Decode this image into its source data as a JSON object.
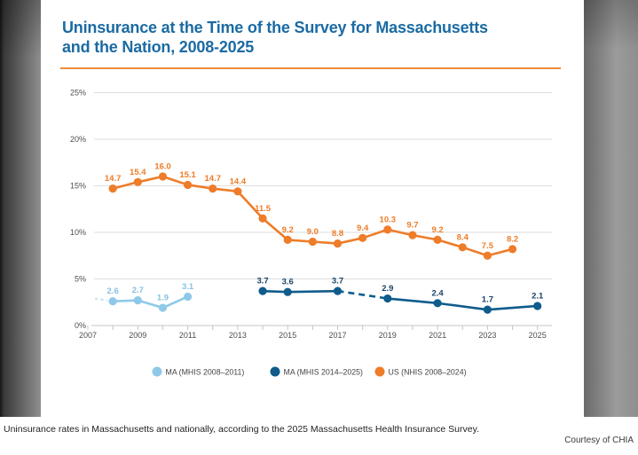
{
  "slide": {
    "title_line1": "Uninsurance at the Time of the Survey for Massachusetts",
    "title_line2": "and the Nation, 2008-2025",
    "accent_color": "#ee8a3c",
    "title_color": "#1b6ba3"
  },
  "caption": "Uninsurance rates in Massachusetts and nationally, according to the 2025 Massachusetts Health Insurance Survey.",
  "credit": "Courtesy of CHIA",
  "chart_data": {
    "type": "line",
    "title": "Uninsurance at the Time of the Survey for Massachusetts and the Nation, 2008-2025",
    "xlabel": "",
    "ylabel": "",
    "x_range": [
      2007,
      2025
    ],
    "ylim": [
      0,
      25
    ],
    "grid": true,
    "legend_position": "bottom",
    "ytick_values": [
      0,
      5,
      10,
      15,
      20,
      25
    ],
    "ytick_labels": [
      "0%",
      "5%",
      "10%",
      "15%",
      "20%",
      "25%"
    ],
    "xtick_labels": [
      "2007",
      "2009",
      "2011",
      "2013",
      "2015",
      "2017",
      "2019",
      "2021",
      "2023",
      "2025"
    ],
    "series": [
      {
        "id": "ma-mhis-2008-2011",
        "name": "MA (MHIS 2008–2011)",
        "color": "#8fc9e9",
        "label_color": "#85c2e4",
        "lead_in_dashed": true,
        "points": [
          {
            "year": 2008,
            "value": 2.6
          },
          {
            "year": 2009,
            "value": 2.7
          },
          {
            "year": 2010,
            "value": 1.9
          },
          {
            "year": 2011,
            "value": 3.1
          }
        ]
      },
      {
        "id": "ma-mhis-2014-2025",
        "name": "MA (MHIS 2014–2025)",
        "color": "#0f5c8c",
        "label_color": "#1a4568",
        "dashed_gaps": [
          [
            2017,
            2019
          ]
        ],
        "points": [
          {
            "year": 2014,
            "value": 3.7
          },
          {
            "year": 2015,
            "value": 3.6
          },
          {
            "year": 2017,
            "value": 3.7
          },
          {
            "year": 2019,
            "value": 2.9
          },
          {
            "year": 2021,
            "value": 2.4
          },
          {
            "year": 2023,
            "value": 1.7
          },
          {
            "year": 2025,
            "value": 2.1
          }
        ]
      },
      {
        "id": "us-nhis-2008-2024",
        "name": "US (NHIS 2008–2024)",
        "color": "#ee7c28",
        "label_color": "#ee7c28",
        "points": [
          {
            "year": 2008,
            "value": 14.7
          },
          {
            "year": 2009,
            "value": 15.4
          },
          {
            "year": 2010,
            "value": 16.0
          },
          {
            "year": 2011,
            "value": 15.1
          },
          {
            "year": 2012,
            "value": 14.7
          },
          {
            "year": 2013,
            "value": 14.4
          },
          {
            "year": 2014,
            "value": 11.5
          },
          {
            "year": 2015,
            "value": 9.2
          },
          {
            "year": 2016,
            "value": 9.0
          },
          {
            "year": 2017,
            "value": 8.8
          },
          {
            "year": 2018,
            "value": 9.4
          },
          {
            "year": 2019,
            "value": 10.3
          },
          {
            "year": 2020,
            "value": 9.7
          },
          {
            "year": 2021,
            "value": 9.2
          },
          {
            "year": 2022,
            "value": 8.4
          },
          {
            "year": 2023,
            "value": 7.5
          },
          {
            "year": 2024,
            "value": 8.2
          }
        ]
      }
    ]
  }
}
